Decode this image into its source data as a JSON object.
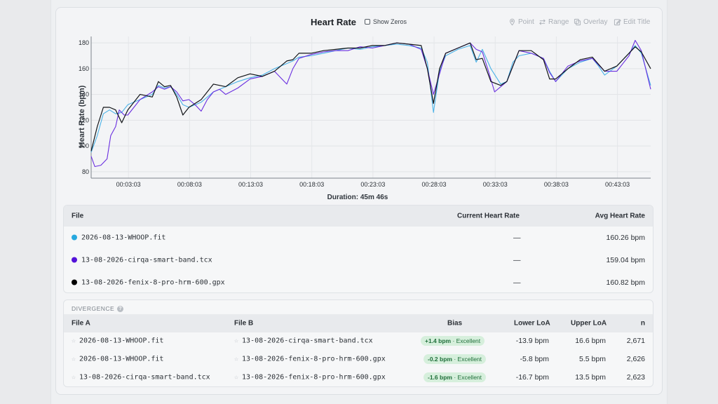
{
  "header": {
    "title": "Heart Rate",
    "show_zeros": "Show Zeros",
    "tools": {
      "point": "Point",
      "range": "Range",
      "overlay": "Overlay",
      "edit_title": "Edit Title"
    }
  },
  "chart_data": {
    "type": "line",
    "xlabel": "Duration: 45m 46s",
    "ylabel": "Heart Rate (bpm)",
    "ylim": [
      75,
      185
    ],
    "yticks": [
      80,
      100,
      120,
      140,
      160,
      180
    ],
    "xticks": [
      "00:03:03",
      "00:08:03",
      "00:13:03",
      "00:18:03",
      "00:23:03",
      "00:28:03",
      "00:33:03",
      "00:38:03",
      "00:43:03"
    ],
    "xticks_min": [
      3.05,
      8.05,
      13.05,
      18.05,
      23.05,
      28.05,
      33.05,
      38.05,
      43.05
    ],
    "xlim_min": [
      0,
      45.77
    ],
    "grid": true,
    "series": [
      {
        "name": "2026-08-13-WHOOP.fit",
        "color": "#4bb3e8",
        "points": [
          [
            0,
            95
          ],
          [
            0.5,
            108
          ],
          [
            1,
            125
          ],
          [
            1.5,
            128
          ],
          [
            2,
            125
          ],
          [
            2.5,
            126
          ],
          [
            3,
            132
          ],
          [
            4,
            136
          ],
          [
            5,
            140
          ],
          [
            5.5,
            147
          ],
          [
            6,
            145
          ],
          [
            6.5,
            146
          ],
          [
            7,
            140
          ],
          [
            7.5,
            132
          ],
          [
            8,
            130
          ],
          [
            9,
            134
          ],
          [
            10,
            142
          ],
          [
            11,
            146
          ],
          [
            12,
            150
          ],
          [
            13,
            153
          ],
          [
            14,
            155
          ],
          [
            15,
            160
          ],
          [
            15.5,
            162
          ],
          [
            16,
            164
          ],
          [
            16.5,
            166
          ],
          [
            17,
            169
          ],
          [
            18,
            170
          ],
          [
            19,
            172
          ],
          [
            20,
            174
          ],
          [
            21,
            176
          ],
          [
            22,
            175
          ],
          [
            23,
            177
          ],
          [
            24,
            178
          ],
          [
            25,
            179
          ],
          [
            26,
            178
          ],
          [
            27,
            176
          ],
          [
            27.5,
            165
          ],
          [
            28,
            126
          ],
          [
            28.5,
            158
          ],
          [
            29,
            170
          ],
          [
            30,
            175
          ],
          [
            31,
            178
          ],
          [
            31.5,
            165
          ],
          [
            32,
            175
          ],
          [
            32.7,
            160
          ],
          [
            33.5,
            148
          ],
          [
            34,
            150
          ],
          [
            34.5,
            165
          ],
          [
            35,
            170
          ],
          [
            36,
            172
          ],
          [
            37,
            168
          ],
          [
            37.5,
            158
          ],
          [
            38,
            150
          ],
          [
            39,
            160
          ],
          [
            40,
            165
          ],
          [
            41,
            168
          ],
          [
            41.5,
            162
          ],
          [
            42,
            155
          ],
          [
            43,
            162
          ],
          [
            44,
            172
          ],
          [
            44.5,
            178
          ],
          [
            45,
            172
          ],
          [
            45.77,
            147
          ]
        ]
      },
      {
        "name": "13-08-2026-cirqa-smart-band.tcx",
        "color": "#6a2ee0",
        "points": [
          [
            0,
            92
          ],
          [
            0.3,
            84
          ],
          [
            0.8,
            85
          ],
          [
            1.3,
            90
          ],
          [
            1.6,
            108
          ],
          [
            2,
            115
          ],
          [
            2.3,
            128
          ],
          [
            2.7,
            124
          ],
          [
            3,
            124
          ],
          [
            4,
            136
          ],
          [
            5,
            142
          ],
          [
            5.5,
            146
          ],
          [
            6,
            144
          ],
          [
            6.5,
            146
          ],
          [
            7,
            142
          ],
          [
            7.5,
            135
          ],
          [
            8,
            136
          ],
          [
            8.5,
            132
          ],
          [
            9,
            127
          ],
          [
            9.5,
            136
          ],
          [
            10,
            142
          ],
          [
            10.5,
            144
          ],
          [
            11,
            140
          ],
          [
            12,
            145
          ],
          [
            13,
            152
          ],
          [
            14,
            154
          ],
          [
            15,
            158
          ],
          [
            15.5,
            153
          ],
          [
            16,
            148
          ],
          [
            16.5,
            160
          ],
          [
            17,
            168
          ],
          [
            18,
            171
          ],
          [
            19,
            173
          ],
          [
            20,
            174
          ],
          [
            21,
            174
          ],
          [
            22,
            177
          ],
          [
            23,
            176
          ],
          [
            24,
            178
          ],
          [
            25,
            180
          ],
          [
            26,
            179
          ],
          [
            27,
            175
          ],
          [
            27.5,
            160
          ],
          [
            28,
            140
          ],
          [
            29,
            172
          ],
          [
            30,
            176
          ],
          [
            31,
            180
          ],
          [
            31.5,
            175
          ],
          [
            32,
            173
          ],
          [
            32.5,
            158
          ],
          [
            33,
            142
          ],
          [
            34,
            150
          ],
          [
            35,
            174
          ],
          [
            36,
            172
          ],
          [
            37,
            168
          ],
          [
            37.5,
            157
          ],
          [
            38,
            150
          ],
          [
            39,
            162
          ],
          [
            40,
            166
          ],
          [
            41,
            168
          ],
          [
            42,
            158
          ],
          [
            43,
            158
          ],
          [
            44,
            170
          ],
          [
            44.5,
            182
          ],
          [
            45,
            174
          ],
          [
            45.77,
            144
          ]
        ]
      },
      {
        "name": "13-08-2026-fenix-8-pro-hrm-600.gpx",
        "color": "#111418",
        "points": [
          [
            0,
            96
          ],
          [
            0.5,
            115
          ],
          [
            1,
            130
          ],
          [
            1.5,
            130
          ],
          [
            2,
            128
          ],
          [
            2.5,
            118
          ],
          [
            3,
            128
          ],
          [
            4,
            140
          ],
          [
            5,
            138
          ],
          [
            5.5,
            150
          ],
          [
            6,
            146
          ],
          [
            6.5,
            147
          ],
          [
            7,
            138
          ],
          [
            7.5,
            124
          ],
          [
            8,
            130
          ],
          [
            9,
            136
          ],
          [
            10,
            148
          ],
          [
            11,
            146
          ],
          [
            12,
            153
          ],
          [
            13,
            156
          ],
          [
            14,
            154
          ],
          [
            15,
            158
          ],
          [
            16,
            166
          ],
          [
            16.5,
            167
          ],
          [
            17,
            172
          ],
          [
            18,
            172
          ],
          [
            19,
            174
          ],
          [
            20,
            175
          ],
          [
            21,
            176
          ],
          [
            22,
            176
          ],
          [
            23,
            178
          ],
          [
            24,
            178
          ],
          [
            25,
            180
          ],
          [
            26,
            179
          ],
          [
            27,
            178
          ],
          [
            27.5,
            160
          ],
          [
            28,
            133
          ],
          [
            28.5,
            160
          ],
          [
            29,
            172
          ],
          [
            30,
            176
          ],
          [
            31,
            180
          ],
          [
            31.5,
            167
          ],
          [
            32,
            168
          ],
          [
            32.7,
            150
          ],
          [
            33.5,
            147
          ],
          [
            34,
            150
          ],
          [
            35,
            174
          ],
          [
            36,
            174
          ],
          [
            37,
            167
          ],
          [
            37.5,
            152
          ],
          [
            38,
            152
          ],
          [
            39,
            160
          ],
          [
            40,
            167
          ],
          [
            41,
            169
          ],
          [
            42,
            158
          ],
          [
            43,
            162
          ],
          [
            44,
            172
          ],
          [
            44.5,
            177
          ],
          [
            45,
            173
          ],
          [
            45.77,
            160
          ]
        ]
      }
    ]
  },
  "files_table": {
    "headers": {
      "file": "File",
      "current": "Current Heart Rate",
      "avg": "Avg Heart Rate"
    },
    "rows": [
      {
        "file": "2026-08-13-WHOOP.fit",
        "color": "#27a9df",
        "current": "—",
        "avg": "160.26 bpm"
      },
      {
        "file": "13-08-2026-cirqa-smart-band.tcx",
        "color": "#5312d9",
        "current": "—",
        "avg": "159.04 bpm"
      },
      {
        "file": "13-08-2026-fenix-8-pro-hrm-600.gpx",
        "color": "#000000",
        "current": "—",
        "avg": "160.82 bpm"
      }
    ]
  },
  "divergence": {
    "title": "DIVERGENCE",
    "headers": {
      "file_a": "File A",
      "file_b": "File B",
      "bias": "Bias",
      "lower": "Lower LoA",
      "upper": "Upper LoA",
      "n": "n"
    },
    "rows": [
      {
        "file_a": "2026-08-13-WHOOP.fit",
        "file_b": "13-08-2026-cirqa-smart-band.tcx",
        "bias": "+1.4 bpm",
        "rating": "· Excellent",
        "lower": "-13.9 bpm",
        "upper": "16.6 bpm",
        "n": "2,671"
      },
      {
        "file_a": "2026-08-13-WHOOP.fit",
        "file_b": "13-08-2026-fenix-8-pro-hrm-600.gpx",
        "bias": "-0.2 bpm",
        "rating": "· Excellent",
        "lower": "-5.8 bpm",
        "upper": "5.5 bpm",
        "n": "2,626"
      },
      {
        "file_a": "13-08-2026-cirqa-smart-band.tcx",
        "file_b": "13-08-2026-fenix-8-pro-hrm-600.gpx",
        "bias": "-1.6 bpm",
        "rating": "· Excellent",
        "lower": "-16.7 bpm",
        "upper": "13.5 bpm",
        "n": "2,623"
      }
    ]
  }
}
